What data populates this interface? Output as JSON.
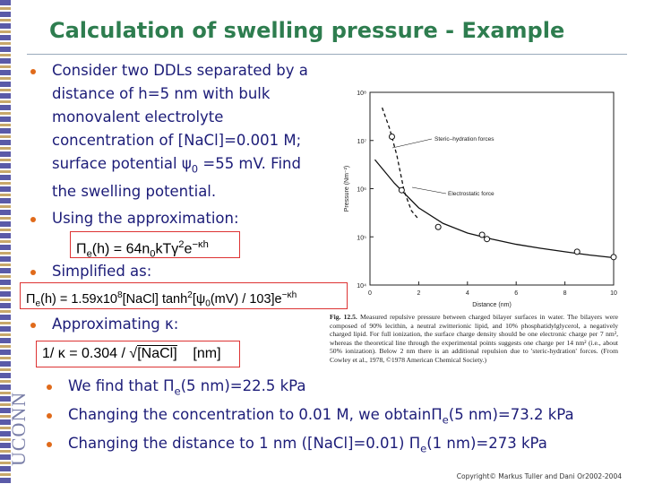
{
  "title": "Calculation of swelling pressure - Example",
  "bullets": [
    [
      "Consider two DDLs separated by a distance of h=5 nm with bulk monovalent electrolyte concentration of [NaCl]=0.001 M; surface potential ",
      {
        "t": "ψ",
        "s": "sym"
      },
      {
        "t": "0",
        "s": "sub"
      },
      " =55 mV. Find the swelling potential."
    ],
    [
      "Using the approximation:"
    ],
    [
      "Simplified as:"
    ],
    [
      "Approximating ",
      {
        "t": "κ",
        "s": "sym"
      },
      ":"
    ],
    [
      "We find that ",
      {
        "t": "Π",
        "s": "sym"
      },
      {
        "t": "e",
        "s": "sub"
      },
      "(5 nm)=22.5 kPa"
    ],
    [
      "Changing the concentration to 0.01 M, we obtain",
      {
        "t": "Π",
        "s": "sym"
      },
      {
        "t": "e",
        "s": "sub"
      },
      "(5 nm)=73.2 kPa"
    ],
    [
      "Changing the distance to 1 nm ([NaCl]=0.01) ",
      {
        "t": "Π",
        "s": "sym"
      },
      {
        "t": "e",
        "s": "sub"
      },
      "(1 nm)=273 kPa"
    ]
  ],
  "equations": [
    [
      "Π",
      {
        "t": "e",
        "s": "sub"
      },
      "(h) = 64n",
      {
        "t": "0",
        "s": "sub"
      },
      "kTγ",
      {
        "t": "2",
        "s": "sup"
      },
      "e",
      {
        "t": "−κh",
        "s": "sup"
      }
    ],
    [
      "Π",
      {
        "t": "e",
        "s": "sub"
      },
      "(h) = 1.59x10",
      {
        "t": "8",
        "s": "sup"
      },
      "[NaCl] tanh",
      {
        "t": "2",
        "s": "sup"
      },
      "[ψ",
      {
        "t": "0",
        "s": "sub"
      },
      "(mV) / 103]e",
      {
        "t": "−κh",
        "s": "sup"
      }
    ],
    [
      "1/ κ = 0.304 / √",
      {
        "t": "[NaCl]",
        "s": "over"
      },
      "    [nm]"
    ]
  ],
  "figure": {
    "ylabel": "Pressure (Nm⁻²)",
    "xlabel": "Distance (nm)",
    "xlim": [
      0,
      10
    ],
    "xticks": [
      0,
      2,
      4,
      6,
      8,
      10
    ],
    "ylim": [
      10000,
      100000000
    ],
    "ylog": true,
    "yticks": [
      {
        "value": 10000,
        "label": "10⁴"
      },
      {
        "value": 100000,
        "label": "10⁵"
      },
      {
        "value": 1000000,
        "label": "10⁶"
      },
      {
        "value": 10000000,
        "label": "10⁷"
      },
      {
        "value": 100000000,
        "label": "10⁸"
      }
    ],
    "points": {
      "x": [
        0.9,
        1.3,
        2.8,
        4.6,
        4.8,
        8.5,
        10.0
      ],
      "y": [
        12000000,
        930000,
        160000,
        110000,
        90000,
        49000,
        38000
      ]
    },
    "series": [
      {
        "name": "Steric–hydration forces",
        "dashed": true,
        "x": [
          0.5,
          0.8,
          1.1,
          1.4,
          1.7,
          2.0
        ],
        "y": [
          48000000,
          18000000,
          5000000,
          900000,
          350000,
          230000
        ]
      },
      {
        "name": "Electrostatic force",
        "dashed": false,
        "x": [
          0.2,
          1,
          2,
          3,
          4,
          5,
          6,
          7,
          8,
          9,
          10
        ],
        "y": [
          4000000,
          1300000,
          400000,
          190000,
          120000,
          90000,
          70000,
          58000,
          49000,
          42000,
          37000
        ]
      }
    ],
    "caption_label": "Fig. 12.5.",
    "caption": "Measured repulsive pressure between charged bilayer surfaces in water. The bilayers were composed of 90% lecithin, a neutral zwitterionic lipid, and 10% phosphatidylglycerol, a negatively charged lipid. For full ionization, the surface charge density should be one electronic charge per 7 nm², whereas the theoretical line through the experimental points suggests one charge per 14 nm² (i.e., about 50% ionization). Below 2 nm there is an additional repulsion due to 'steric-hydration' forces. (From Cowley et al., 1978, ©1978 American Chemical Society.)"
  },
  "sidebar": {
    "logo": "UCONN"
  },
  "footer": {
    "copyright": "Copyright© Markus Tuller and Dani Or2002-2004"
  }
}
